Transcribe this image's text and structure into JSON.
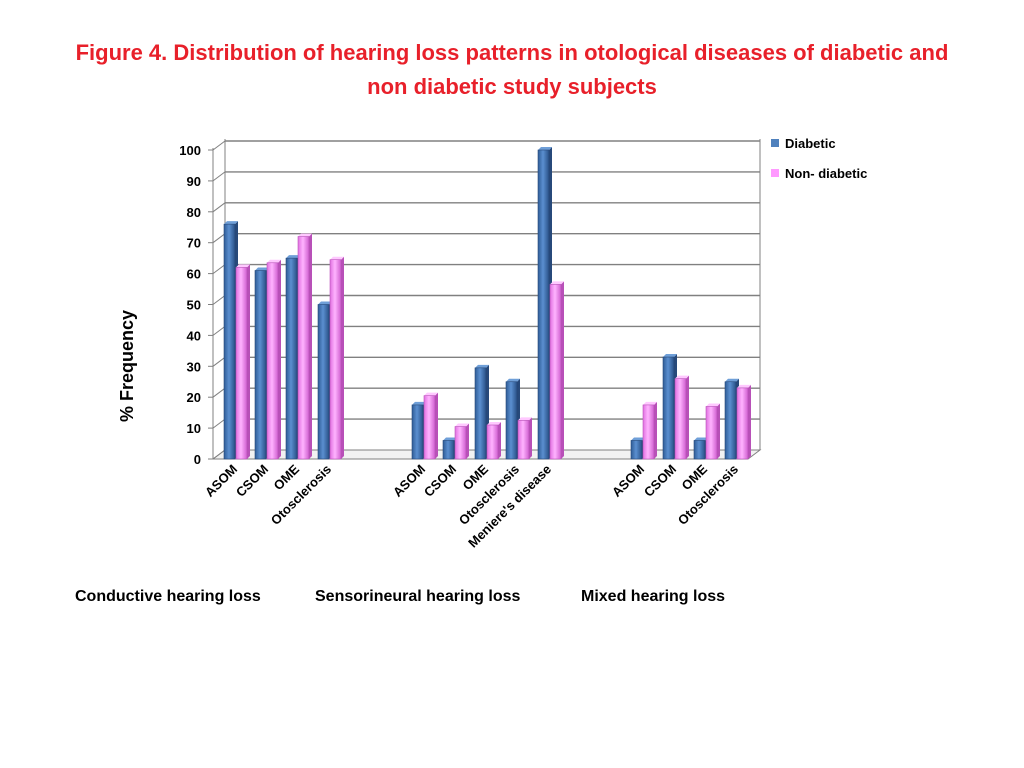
{
  "title": {
    "line1": "Figure 4. Distribution of hearing loss patterns in otological diseases of diabetic and",
    "line2": "non diabetic study subjects"
  },
  "groups": [
    {
      "label": "Conductive hearing loss"
    },
    {
      "label": "Sensorineural  hearing loss"
    },
    {
      "label": "Mixed hearing loss"
    }
  ],
  "colors": {
    "diabetic": "#4f81bd",
    "non_diabetic": "#ff99ff",
    "title": "#e8202a"
  },
  "chart_data": {
    "type": "bar",
    "ylabel": "% Frequency",
    "ylim": [
      0,
      100
    ],
    "yticks": [
      0,
      10,
      20,
      30,
      40,
      50,
      60,
      70,
      80,
      90,
      100
    ],
    "grid": true,
    "legend": "top-right",
    "categories": [
      "ASOM",
      "CSOM",
      "OME",
      "Otosclerosis",
      "ASOM",
      "CSOM",
      "OME",
      "Otosclerosis",
      "Meniere's disease",
      "ASOM",
      "CSOM",
      "OME",
      "Otosclerosis"
    ],
    "series": [
      {
        "name": "Diabetic",
        "values": [
          76,
          61,
          65,
          50,
          17.5,
          6,
          29.5,
          25,
          100,
          6,
          33,
          6,
          25
        ]
      },
      {
        "name": "Non- diabetic",
        "values": [
          62,
          63.5,
          72,
          64.5,
          20.5,
          10.5,
          11,
          12.5,
          56.5,
          17.5,
          26,
          17,
          23
        ]
      }
    ]
  }
}
